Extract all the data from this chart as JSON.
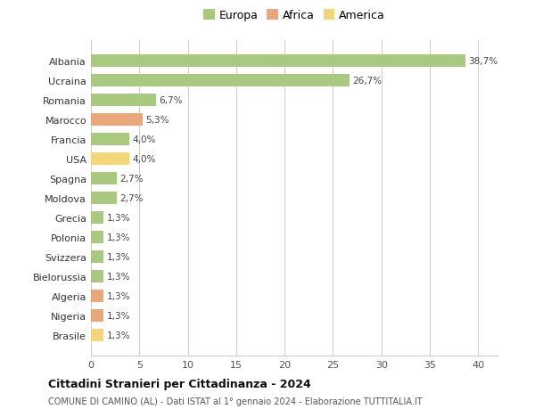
{
  "countries": [
    "Albania",
    "Ucraina",
    "Romania",
    "Marocco",
    "Francia",
    "USA",
    "Spagna",
    "Moldova",
    "Grecia",
    "Polonia",
    "Svizzera",
    "Bielorussia",
    "Algeria",
    "Nigeria",
    "Brasile"
  ],
  "values": [
    38.7,
    26.7,
    6.7,
    5.3,
    4.0,
    4.0,
    2.7,
    2.7,
    1.3,
    1.3,
    1.3,
    1.3,
    1.3,
    1.3,
    1.3
  ],
  "labels": [
    "38,7%",
    "26,7%",
    "6,7%",
    "5,3%",
    "4,0%",
    "4,0%",
    "2,7%",
    "2,7%",
    "1,3%",
    "1,3%",
    "1,3%",
    "1,3%",
    "1,3%",
    "1,3%",
    "1,3%"
  ],
  "colors": [
    "#a8c97f",
    "#a8c97f",
    "#a8c97f",
    "#e8a87c",
    "#a8c97f",
    "#f5d57a",
    "#a8c97f",
    "#a8c97f",
    "#a8c97f",
    "#a8c97f",
    "#a8c97f",
    "#a8c97f",
    "#e8a87c",
    "#e8a87c",
    "#f5d57a"
  ],
  "legend_labels": [
    "Europa",
    "Africa",
    "America"
  ],
  "legend_colors": [
    "#a8c97f",
    "#e8a87c",
    "#f5d57a"
  ],
  "title": "Cittadini Stranieri per Cittadinanza - 2024",
  "subtitle": "COMUNE DI CAMINO (AL) - Dati ISTAT al 1° gennaio 2024 - Elaborazione TUTTITALIA.IT",
  "xlim": [
    0,
    42
  ],
  "xticks": [
    0,
    5,
    10,
    15,
    20,
    25,
    30,
    35,
    40
  ],
  "background_color": "#ffffff",
  "grid_color": "#cccccc",
  "bar_height": 0.65
}
